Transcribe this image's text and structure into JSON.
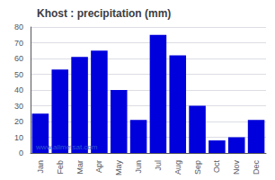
{
  "chart_data": {
    "type": "bar",
    "title": "Khost : precipitation (mm)",
    "categories": [
      "Jan",
      "Feb",
      "Mar",
      "Apr",
      "May",
      "Jun",
      "Jul",
      "Aug",
      "Sep",
      "Oct",
      "Nov",
      "Dec"
    ],
    "values": [
      25,
      53,
      61,
      65,
      40,
      21,
      75,
      62,
      30,
      8,
      10,
      21
    ],
    "color": "#0000dd",
    "ylim": [
      0,
      80
    ],
    "yticks": [
      0,
      10,
      20,
      30,
      40,
      50,
      60,
      70,
      80
    ],
    "grid": true,
    "annotations": [
      "www.allmetsat.com"
    ]
  }
}
